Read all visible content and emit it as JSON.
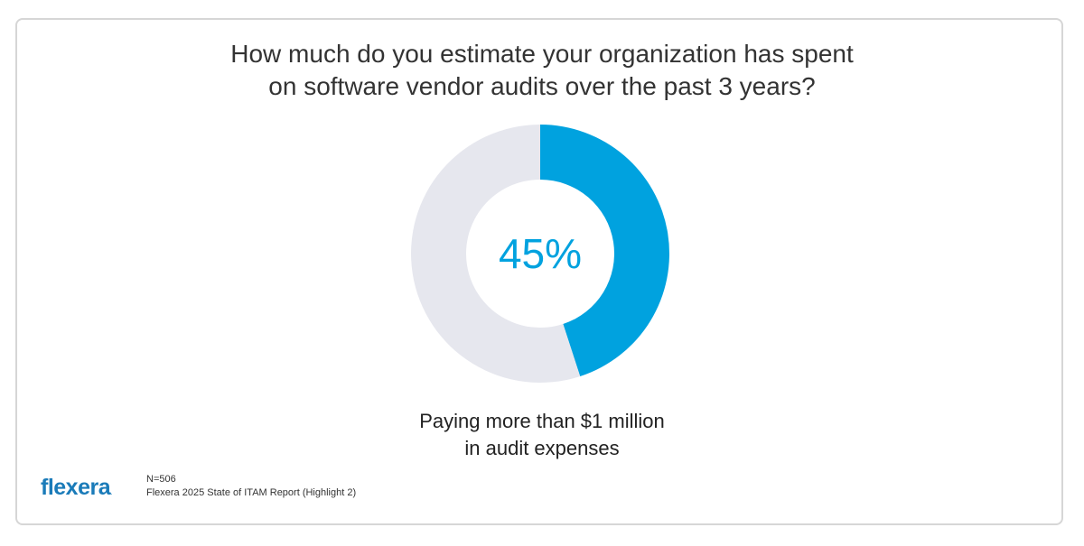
{
  "title": {
    "line1": "How much do you estimate your organization has spent",
    "line2": "on software vendor audits over the past 3 years?"
  },
  "chart_data": {
    "type": "pie",
    "style": "donut",
    "center_label": "45%",
    "slices": [
      {
        "label": "Paying more than $1 million in audit expenses",
        "value": 45,
        "color": "#00a2df"
      },
      {
        "label": "",
        "value": 55,
        "color": "#e6e7ee"
      }
    ]
  },
  "caption": {
    "line1": "Paying more than $1 million",
    "line2": "in audit expenses"
  },
  "footer": {
    "logo_text": "flexera",
    "logo_mark": ".",
    "sample_size": "N=506",
    "source": "Flexera 2025 State of ITAM Report (Highlight 2)"
  },
  "colors": {
    "accent": "#00a2df",
    "remainder": "#e6e7ee",
    "logo": "#1a7bb9",
    "title_text": "#333333",
    "border": "#d6d6d6"
  }
}
